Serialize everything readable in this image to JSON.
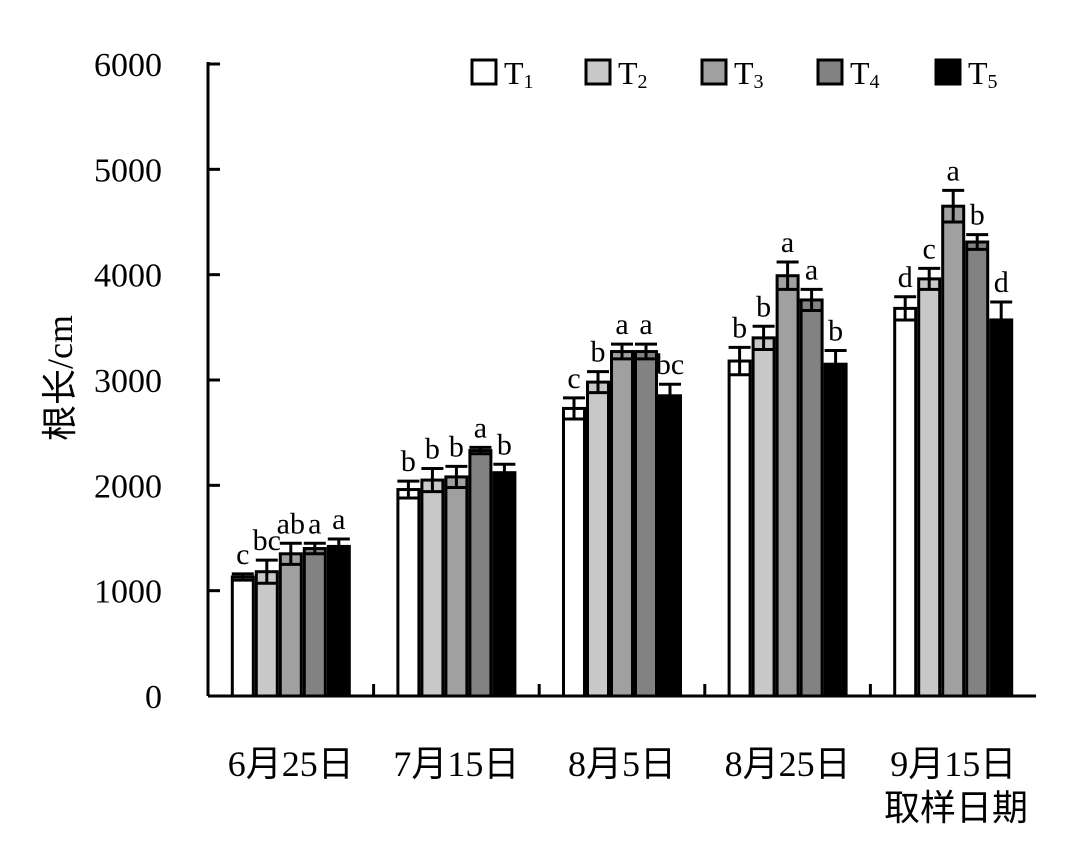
{
  "chart_data": {
    "type": "bar",
    "ylabel": "根长/cm",
    "xlabel": "取样日期",
    "ylim": [
      0,
      6000
    ],
    "yticks": [
      "0",
      "1000",
      "2000",
      "3000",
      "4000",
      "5000",
      "6000"
    ],
    "grid": false,
    "legend_position": "top-right",
    "categories": [
      "6月25日",
      "7月15日",
      "8月5日",
      "8月25日",
      "9月15日"
    ],
    "series": [
      {
        "name": "T1",
        "label_main": "T",
        "label_sub": "1",
        "color": "#ffffff",
        "values": [
          1130,
          1960,
          2730,
          3180,
          3680
        ],
        "errors": [
          30,
          80,
          100,
          130,
          110
        ],
        "letters": [
          "c",
          "b",
          "c",
          "b",
          "d"
        ]
      },
      {
        "name": "T2",
        "label_main": "T",
        "label_sub": "2",
        "color": "#c8c8c8",
        "values": [
          1180,
          2050,
          2980,
          3400,
          3960
        ],
        "errors": [
          110,
          110,
          100,
          110,
          100
        ],
        "letters": [
          "bc",
          "b",
          "b",
          "b",
          "c"
        ]
      },
      {
        "name": "T3",
        "label_main": "T",
        "label_sub": "3",
        "color": "#a0a0a0",
        "values": [
          1350,
          2080,
          3270,
          3990,
          4650
        ],
        "errors": [
          100,
          100,
          70,
          130,
          150
        ],
        "letters": [
          "ab",
          "b",
          "a",
          "a",
          "a"
        ]
      },
      {
        "name": "T4",
        "label_main": "T",
        "label_sub": "4",
        "color": "#828282",
        "values": [
          1400,
          2330,
          3270,
          3760,
          4310
        ],
        "errors": [
          50,
          30,
          70,
          100,
          70
        ],
        "letters": [
          "a",
          "a",
          "a",
          "a",
          "b"
        ]
      },
      {
        "name": "T5",
        "label_main": "T",
        "label_sub": "5",
        "color": "#000000",
        "values": [
          1420,
          2120,
          2850,
          3150,
          3570
        ],
        "errors": [
          70,
          80,
          110,
          130,
          170
        ],
        "letters": [
          "a",
          "b",
          "bc",
          "b",
          "d"
        ]
      }
    ]
  }
}
